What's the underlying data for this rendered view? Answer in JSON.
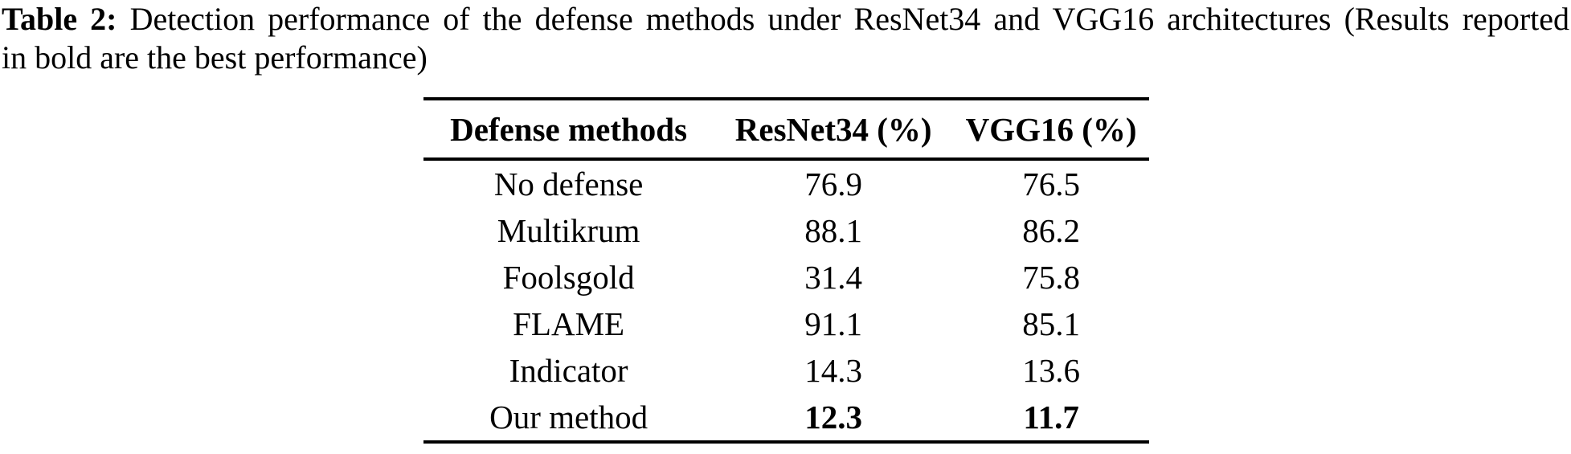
{
  "caption": {
    "label": "Table 2:",
    "line1": "Detection performance of the defense methods under ResNet34 and VGG16 architectures (Results reported",
    "line2": "in bold are the best performance)"
  },
  "table": {
    "headers": [
      "Defense methods",
      "ResNet34 (%)",
      "VGG16 (%)"
    ],
    "rows": [
      {
        "method": "No defense",
        "resnet34": "76.9",
        "vgg16": "76.5",
        "best": false
      },
      {
        "method": "Multikrum",
        "resnet34": "88.1",
        "vgg16": "86.2",
        "best": false
      },
      {
        "method": "Foolsgold",
        "resnet34": "31.4",
        "vgg16": "75.8",
        "best": false
      },
      {
        "method": "FLAME",
        "resnet34": "91.1",
        "vgg16": "85.1",
        "best": false
      },
      {
        "method": "Indicator",
        "resnet34": "14.3",
        "vgg16": "13.6",
        "best": false
      },
      {
        "method": "Our method",
        "resnet34": "12.3",
        "vgg16": "11.7",
        "best": true
      }
    ]
  },
  "colors": {
    "text": "#000000",
    "background": "#ffffff",
    "rule": "#000000"
  }
}
